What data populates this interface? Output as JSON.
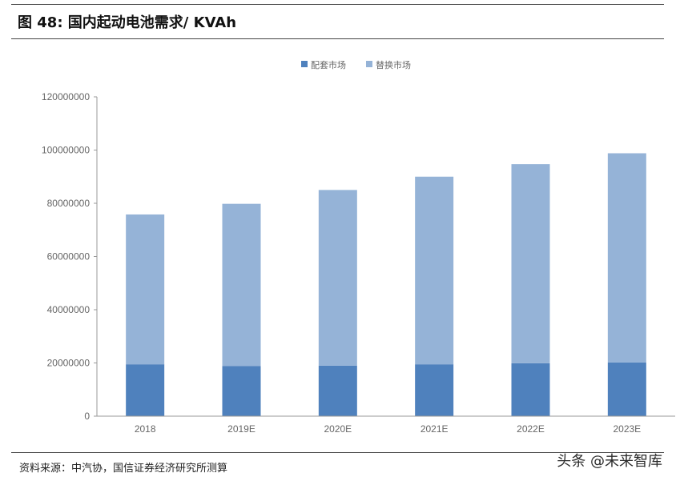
{
  "figure": {
    "title": "图 48:  国内起动电池需求/ KVAh",
    "source": "资料来源：中汽协，国信证券经济研究所测算",
    "watermark": "头条 @未来智库"
  },
  "colors": {
    "oem": "#4f81bd",
    "aftermarket": "#95b3d7",
    "axis": "#999999"
  },
  "chart_data": {
    "type": "bar",
    "stacked": true,
    "categories": [
      "2018",
      "2019E",
      "2020E",
      "2021E",
      "2022E",
      "2023E"
    ],
    "series": [
      {
        "name": "配套市场",
        "values": [
          19500000,
          18800000,
          19000000,
          19500000,
          19900000,
          20200000
        ]
      },
      {
        "name": "替换市场",
        "values": [
          56300000,
          61000000,
          66000000,
          70500000,
          74800000,
          78600000
        ]
      }
    ],
    "yticks": [
      "0",
      "20000000",
      "40000000",
      "60000000",
      "80000000",
      "100000000",
      "120000000"
    ],
    "ylim": [
      0,
      120000000
    ],
    "legend_position": "top-center",
    "grid": false
  }
}
